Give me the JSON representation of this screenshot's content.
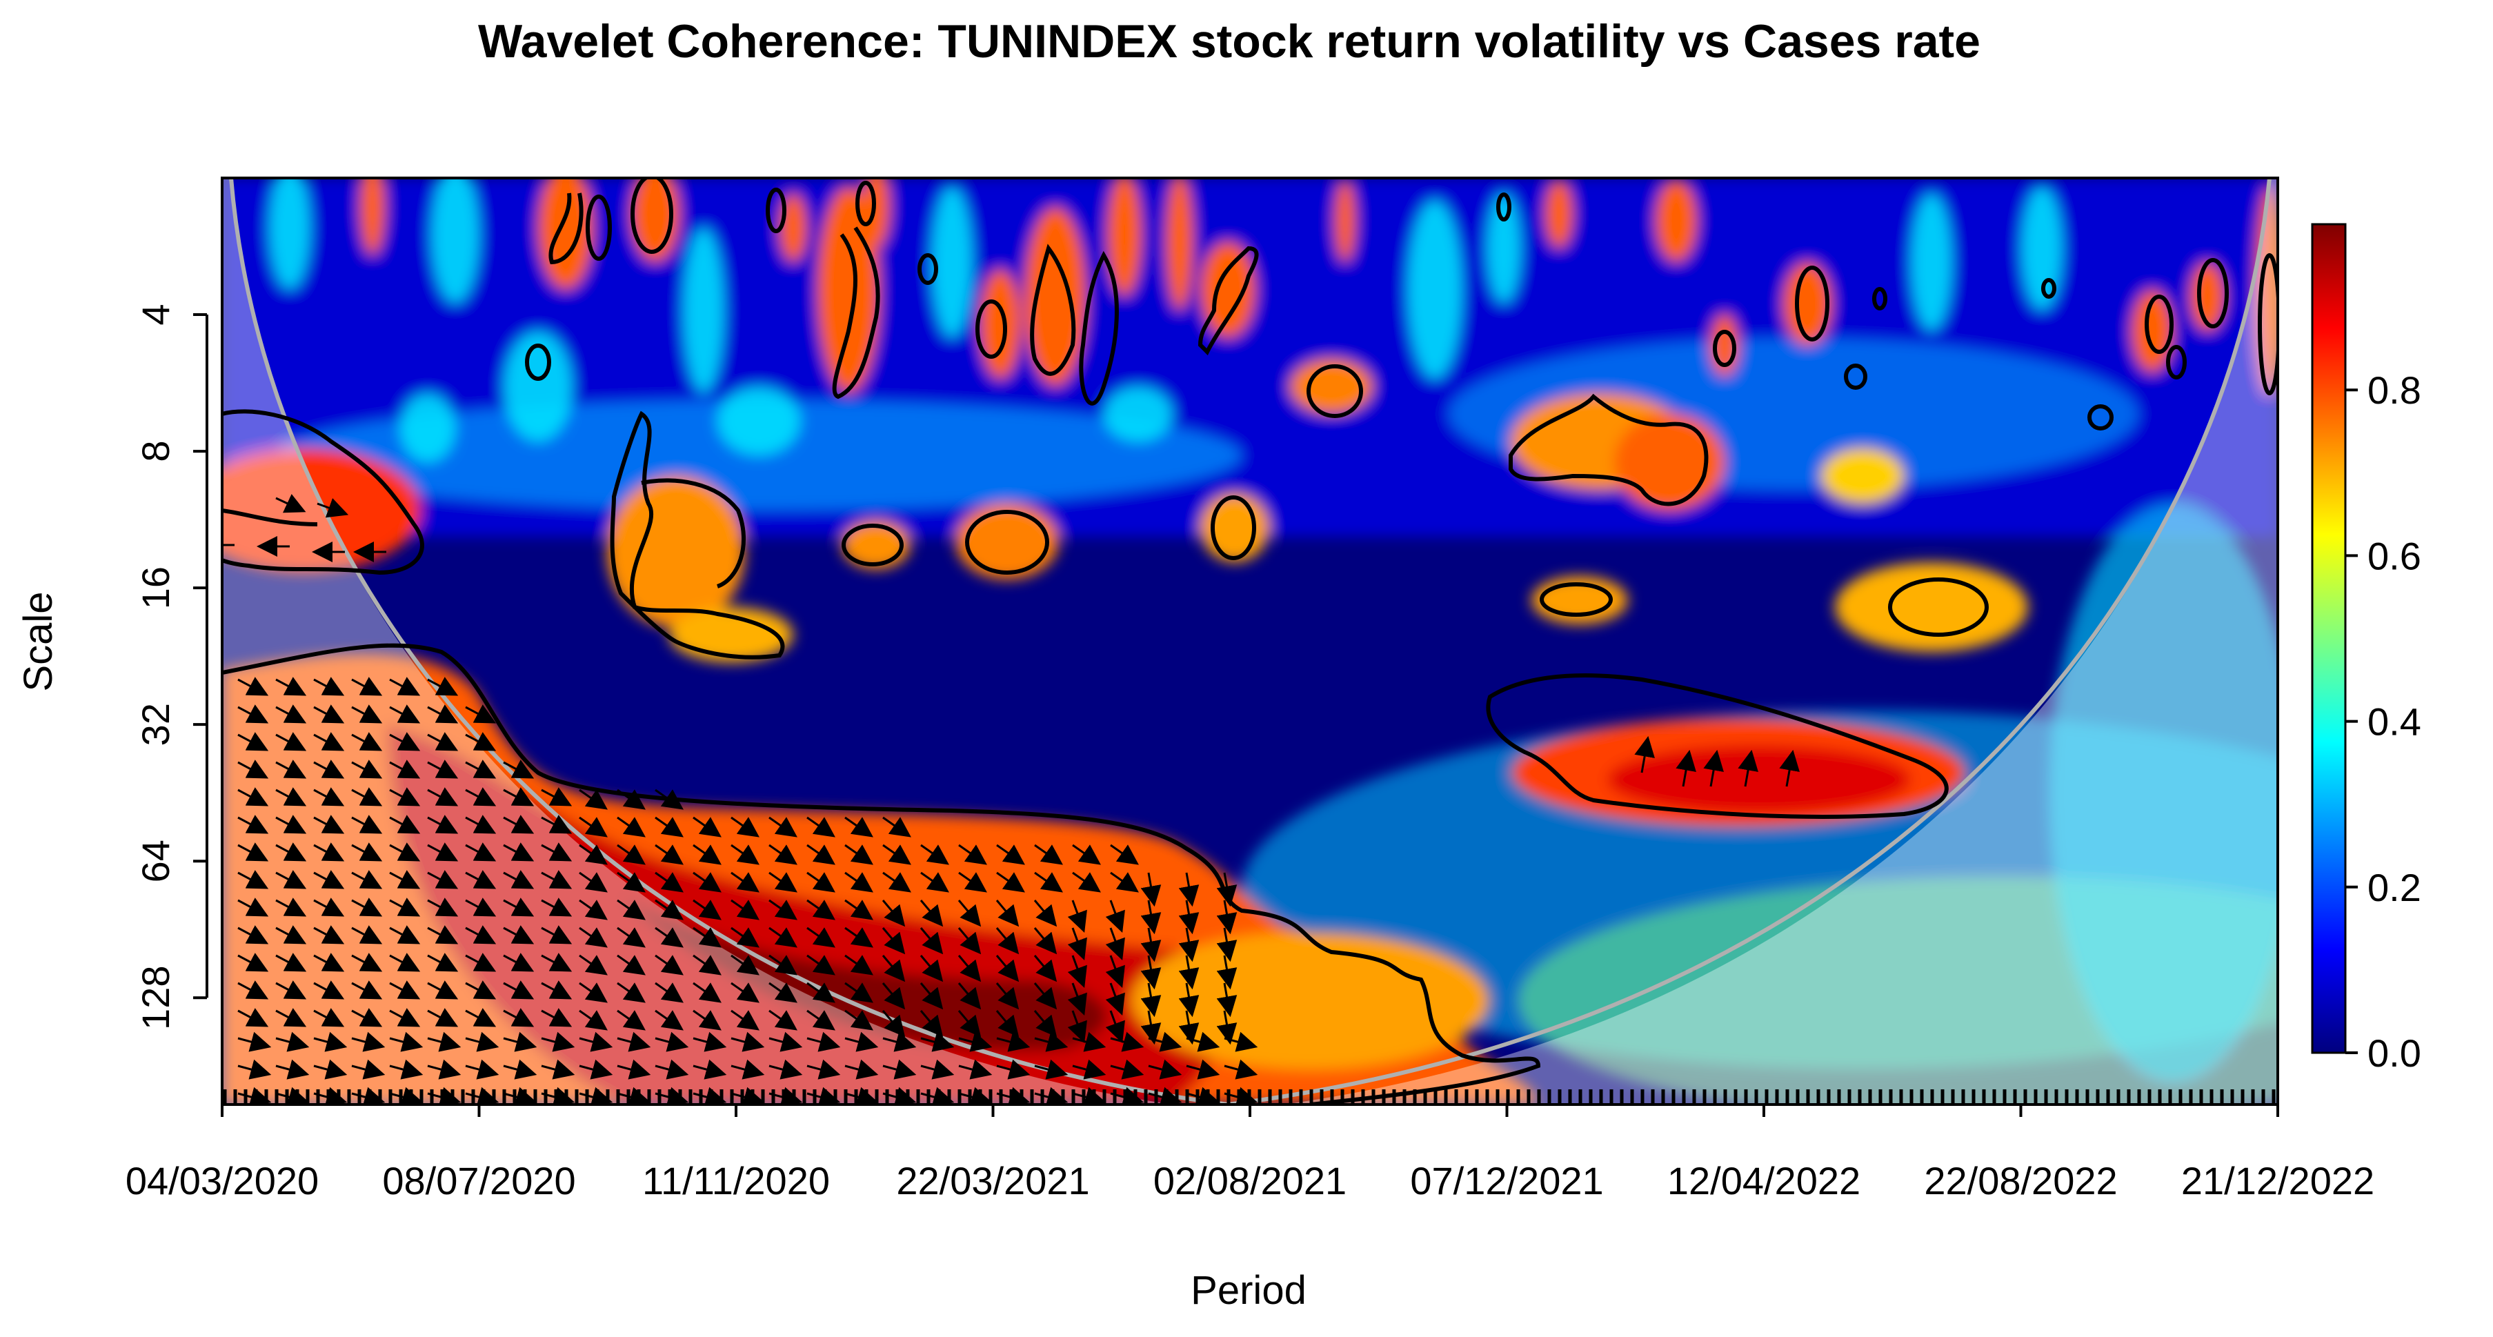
{
  "chart_data": {
    "type": "heatmap",
    "title": "Wavelet Coherence: TUNINDEX stock return volatility vs Cases rate",
    "xlabel": "Period",
    "ylabel": "Scale",
    "x_ticks": [
      "04/03/2020",
      "08/07/2020",
      "11/11/2020",
      "22/03/2021",
      "02/08/2021",
      "07/12/2021",
      "12/04/2022",
      "22/08/2022",
      "21/12/2022"
    ],
    "y_scale": "log2",
    "y_reversed": true,
    "y_ticks": [
      4,
      8,
      16,
      32,
      64,
      128
    ],
    "ylim": [
      2,
      220
    ],
    "colorbar": {
      "ticks": [
        "0.0",
        "0.2",
        "0.4",
        "0.6",
        "0.8"
      ],
      "range": [
        0,
        1
      ],
      "colors": [
        "#00007f",
        "#0000ff",
        "#007fff",
        "#00ffff",
        "#7fff7f",
        "#ffff00",
        "#ff7f00",
        "#ff0000",
        "#7f0000"
      ]
    },
    "regions": [
      {
        "name": "low-frequency-cluster",
        "x_start": 0.0,
        "x_end": 0.62,
        "scale_start": 26,
        "scale_end": 220,
        "coherence": 0.85
      },
      {
        "name": "early-cluster",
        "x_start": 0.0,
        "x_end": 0.09,
        "scale_start": 8,
        "scale_end": 16,
        "coherence": 0.85
      },
      {
        "name": "mid-2022-cluster",
        "x_start": 0.62,
        "x_end": 0.84,
        "scale_start": 28,
        "scale_end": 52,
        "coherence": 0.9
      },
      {
        "name": "early-2022-blob",
        "x_start": 0.62,
        "x_end": 0.72,
        "scale_start": 7,
        "scale_end": 12,
        "coherence": 0.8
      },
      {
        "name": "late-2020-blob",
        "x_start": 0.19,
        "x_end": 0.28,
        "scale_start": 10,
        "scale_end": 24,
        "coherence": 0.75
      }
    ],
    "arrow_direction": "in-phase, variable 1 lagging (down-right arrows)",
    "cone_of_influence": true,
    "significance_contours": true
  }
}
